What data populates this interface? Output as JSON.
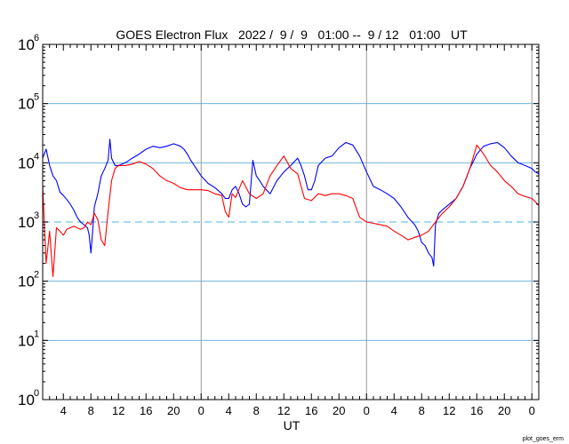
{
  "chart_data": {
    "type": "line",
    "title": "GOES Electron Flux   2022 /  9 /  9   01:00 --  9 / 12   01:00   UT",
    "xlabel": "UT",
    "ylabel": "",
    "y_scale": "log",
    "ylim": [
      1,
      1000000
    ],
    "xlim": [
      "2022-09-09 01:00",
      "2022-09-12 01:00"
    ],
    "y_ticks": [
      {
        "base": "10",
        "exp": "0",
        "value": 1
      },
      {
        "base": "10",
        "exp": "1",
        "value": 10
      },
      {
        "base": "10",
        "exp": "2",
        "value": 100
      },
      {
        "base": "10",
        "exp": "3",
        "value": 1000
      },
      {
        "base": "10",
        "exp": "4",
        "value": 10000
      },
      {
        "base": "10",
        "exp": "5",
        "value": 100000
      },
      {
        "base": "10",
        "exp": "6",
        "value": 1000000
      }
    ],
    "x_ticks": [
      {
        "label": "4",
        "time": "2022-09-09 04:00"
      },
      {
        "label": "8",
        "time": "2022-09-09 08:00"
      },
      {
        "label": "12",
        "time": "2022-09-09 12:00"
      },
      {
        "label": "16",
        "time": "2022-09-09 16:00"
      },
      {
        "label": "20",
        "time": "2022-09-09 20:00"
      },
      {
        "label": "0",
        "time": "2022-09-10 00:00"
      },
      {
        "label": "4",
        "time": "2022-09-10 04:00"
      },
      {
        "label": "8",
        "time": "2022-09-10 08:00"
      },
      {
        "label": "12",
        "time": "2022-09-10 12:00"
      },
      {
        "label": "16",
        "time": "2022-09-10 16:00"
      },
      {
        "label": "20",
        "time": "2022-09-10 20:00"
      },
      {
        "label": "0",
        "time": "2022-09-11 00:00"
      },
      {
        "label": "4",
        "time": "2022-09-11 04:00"
      },
      {
        "label": "8",
        "time": "2022-09-11 08:00"
      },
      {
        "label": "12",
        "time": "2022-09-11 12:00"
      },
      {
        "label": "16",
        "time": "2022-09-11 16:00"
      },
      {
        "label": "20",
        "time": "2022-09-11 20:00"
      },
      {
        "label": "0",
        "time": "2022-09-12 00:00"
      }
    ],
    "day_boundaries": [
      "2022-09-10 00:00",
      "2022-09-11 00:00",
      "2022-09-12 00:00"
    ],
    "grid_y": [
      10,
      100,
      10000,
      100000
    ],
    "threshold": {
      "value": 1000,
      "style": "dashed",
      "color": "#87ceeb"
    },
    "series": [
      {
        "color": "#0000ff",
        "x": [
          "2022-09-09 01:00",
          "2022-09-09 01:30",
          "2022-09-09 02:00",
          "2022-09-09 02:30",
          "2022-09-09 03:00",
          "2022-09-09 03:30",
          "2022-09-09 04:00",
          "2022-09-09 04:30",
          "2022-09-09 05:00",
          "2022-09-09 05:30",
          "2022-09-09 06:00",
          "2022-09-09 06:30",
          "2022-09-09 07:00",
          "2022-09-09 07:30",
          "2022-09-09 07:45",
          "2022-09-09 08:00",
          "2022-09-09 08:15",
          "2022-09-09 08:30",
          "2022-09-09 09:00",
          "2022-09-09 09:30",
          "2022-09-09 10:00",
          "2022-09-09 10:30",
          "2022-09-09 10:45",
          "2022-09-09 11:00",
          "2022-09-09 11:30",
          "2022-09-09 12:00",
          "2022-09-09 13:00",
          "2022-09-09 14:00",
          "2022-09-09 15:00",
          "2022-09-09 16:00",
          "2022-09-09 17:00",
          "2022-09-09 18:00",
          "2022-09-09 19:00",
          "2022-09-09 20:00",
          "2022-09-09 21:00",
          "2022-09-09 21:30",
          "2022-09-09 22:00",
          "2022-09-09 22:30",
          "2022-09-09 23:00",
          "2022-09-10 00:00",
          "2022-09-10 01:00",
          "2022-09-10 02:00",
          "2022-09-10 03:00",
          "2022-09-10 03:30",
          "2022-09-10 04:00",
          "2022-09-10 04:30",
          "2022-09-10 05:00",
          "2022-09-10 05:30",
          "2022-09-10 06:00",
          "2022-09-10 06:30",
          "2022-09-10 07:00",
          "2022-09-10 07:30",
          "2022-09-10 08:00",
          "2022-09-10 08:30",
          "2022-09-10 09:00",
          "2022-09-10 10:00",
          "2022-09-10 11:00",
          "2022-09-10 12:00",
          "2022-09-10 13:00",
          "2022-09-10 14:00",
          "2022-09-10 14:30",
          "2022-09-10 15:00",
          "2022-09-10 15:30",
          "2022-09-10 16:00",
          "2022-09-10 16:30",
          "2022-09-10 17:00",
          "2022-09-10 18:00",
          "2022-09-10 19:00",
          "2022-09-10 20:00",
          "2022-09-10 21:00",
          "2022-09-10 22:00",
          "2022-09-10 23:00",
          "2022-09-11 00:00",
          "2022-09-11 01:00",
          "2022-09-11 02:00",
          "2022-09-11 03:00",
          "2022-09-11 04:00",
          "2022-09-11 05:00",
          "2022-09-11 06:00",
          "2022-09-11 07:00",
          "2022-09-11 07:30",
          "2022-09-11 08:00",
          "2022-09-11 08:30",
          "2022-09-11 09:00",
          "2022-09-11 09:30",
          "2022-09-11 09:45",
          "2022-09-11 10:00",
          "2022-09-11 10:30",
          "2022-09-11 11:00",
          "2022-09-11 12:00",
          "2022-09-11 13:00",
          "2022-09-11 14:00",
          "2022-09-11 15:00",
          "2022-09-11 16:00",
          "2022-09-11 17:00",
          "2022-09-11 18:00",
          "2022-09-11 19:00",
          "2022-09-11 20:00",
          "2022-09-11 21:00",
          "2022-09-11 22:00",
          "2022-09-11 23:00",
          "2022-09-12 00:00",
          "2022-09-12 00:30",
          "2022-09-12 01:00"
        ],
        "values": [
          12000,
          17000,
          9000,
          6000,
          5000,
          3200,
          2800,
          2400,
          2000,
          1600,
          1200,
          1000,
          900,
          800,
          600,
          300,
          700,
          1800,
          3000,
          6000,
          8000,
          11000,
          25000,
          12000,
          9000,
          9000,
          10000,
          12000,
          14000,
          17000,
          19000,
          18000,
          19000,
          21000,
          19000,
          17000,
          14000,
          11000,
          9000,
          6000,
          4500,
          3800,
          3000,
          2500,
          2500,
          3500,
          4000,
          3000,
          2000,
          1800,
          2000,
          11000,
          6000,
          5000,
          4000,
          3000,
          5000,
          7000,
          9000,
          12000,
          9000,
          6000,
          3500,
          3500,
          5000,
          9000,
          12000,
          13000,
          18000,
          22000,
          20000,
          13000,
          7000,
          4000,
          3500,
          3000,
          2500,
          1800,
          1200,
          900,
          700,
          450,
          400,
          300,
          250,
          180,
          900,
          1400,
          1600,
          2000,
          2500,
          4000,
          8000,
          14000,
          19000,
          21000,
          22000,
          18000,
          13000,
          10000,
          9000,
          8000,
          7000,
          6500
        ]
      },
      {
        "color": "#ff0000",
        "x": [
          "2022-09-09 01:00",
          "2022-09-09 01:30",
          "2022-09-09 02:00",
          "2022-09-09 02:30",
          "2022-09-09 03:00",
          "2022-09-09 03:30",
          "2022-09-09 04:00",
          "2022-09-09 04:30",
          "2022-09-09 05:00",
          "2022-09-09 05:30",
          "2022-09-09 06:00",
          "2022-09-09 06:30",
          "2022-09-09 07:00",
          "2022-09-09 07:30",
          "2022-09-09 08:00",
          "2022-09-09 08:30",
          "2022-09-09 09:00",
          "2022-09-09 09:30",
          "2022-09-09 10:00",
          "2022-09-09 10:30",
          "2022-09-09 11:00",
          "2022-09-09 11:30",
          "2022-09-09 12:00",
          "2022-09-09 13:00",
          "2022-09-09 14:00",
          "2022-09-09 15:00",
          "2022-09-09 16:00",
          "2022-09-09 17:00",
          "2022-09-09 18:00",
          "2022-09-09 19:00",
          "2022-09-09 20:00",
          "2022-09-09 21:00",
          "2022-09-09 22:00",
          "2022-09-09 23:00",
          "2022-09-10 00:00",
          "2022-09-10 01:00",
          "2022-09-10 02:00",
          "2022-09-10 03:00",
          "2022-09-10 03:30",
          "2022-09-10 04:00",
          "2022-09-10 04:30",
          "2022-09-10 05:00",
          "2022-09-10 06:00",
          "2022-09-10 07:00",
          "2022-09-10 08:00",
          "2022-09-10 09:00",
          "2022-09-10 10:00",
          "2022-09-10 11:00",
          "2022-09-10 12:00",
          "2022-09-10 13:00",
          "2022-09-10 14:00",
          "2022-09-10 15:00",
          "2022-09-10 16:00",
          "2022-09-10 17:00",
          "2022-09-10 18:00",
          "2022-09-10 19:00",
          "2022-09-10 20:00",
          "2022-09-10 21:00",
          "2022-09-10 22:00",
          "2022-09-10 23:00",
          "2022-09-11 00:00",
          "2022-09-11 01:00",
          "2022-09-11 02:00",
          "2022-09-11 03:00",
          "2022-09-11 04:00",
          "2022-09-11 05:00",
          "2022-09-11 06:00",
          "2022-09-11 07:00",
          "2022-09-11 08:00",
          "2022-09-11 09:00",
          "2022-09-11 10:00",
          "2022-09-11 11:00",
          "2022-09-11 12:00",
          "2022-09-11 13:00",
          "2022-09-11 14:00",
          "2022-09-11 15:00",
          "2022-09-11 16:00",
          "2022-09-11 17:00",
          "2022-09-11 18:00",
          "2022-09-11 19:00",
          "2022-09-11 20:00",
          "2022-09-11 21:00",
          "2022-09-11 22:00",
          "2022-09-11 23:00",
          "2022-09-12 00:00",
          "2022-09-12 00:30",
          "2022-09-12 01:00"
        ],
        "values": [
          4000,
          200,
          700,
          120,
          800,
          700,
          600,
          750,
          800,
          850,
          800,
          750,
          800,
          1000,
          900,
          1400,
          1100,
          500,
          400,
          1500,
          5000,
          8000,
          9000,
          9000,
          9500,
          10500,
          9500,
          8000,
          6000,
          5000,
          4500,
          3800,
          3500,
          3500,
          3500,
          3400,
          3000,
          2800,
          1500,
          1200,
          3000,
          2600,
          5000,
          3000,
          2500,
          3000,
          6000,
          9000,
          13000,
          8000,
          6500,
          2500,
          2300,
          3000,
          2800,
          3000,
          3000,
          2800,
          2500,
          1200,
          1000,
          950,
          900,
          850,
          700,
          600,
          500,
          550,
          600,
          700,
          1000,
          1400,
          1800,
          2500,
          4000,
          8000,
          20000,
          14000,
          9000,
          7000,
          5000,
          4000,
          3000,
          2700,
          2500,
          2200,
          1900
        ]
      }
    ]
  },
  "footer": "plot_goes_erm"
}
